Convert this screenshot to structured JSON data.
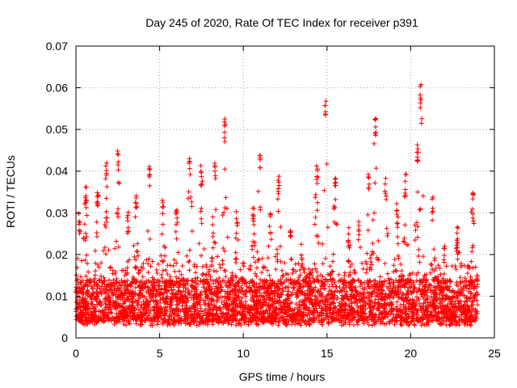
{
  "chart_data": {
    "type": "scatter",
    "title": "Day 245 of 2020, Rate Of TEC Index for receiver p391",
    "xlabel": "GPS time / hours",
    "ylabel": "ROTI / TECUs",
    "xlim": [
      0,
      25
    ],
    "ylim": [
      0,
      0.07
    ],
    "x_ticks": [
      "0",
      "5",
      "10",
      "15",
      "20",
      "25"
    ],
    "x_tick_values": [
      0,
      5,
      10,
      15,
      20,
      25
    ],
    "y_ticks": [
      "0",
      "0.01",
      "0.02",
      "0.03",
      "0.04",
      "0.05",
      "0.06",
      "0.07"
    ],
    "y_tick_values": [
      0,
      0.01,
      0.02,
      0.03,
      0.04,
      0.05,
      0.06,
      0.07
    ],
    "grid": true,
    "marker": "+",
    "color": "#ff0000",
    "x_range_data": [
      0,
      24
    ],
    "baseline": 0.007,
    "peaks": [
      {
        "x": 0.2,
        "y": 0.03
      },
      {
        "x": 0.6,
        "y": 0.037
      },
      {
        "x": 1.3,
        "y": 0.036
      },
      {
        "x": 1.8,
        "y": 0.044
      },
      {
        "x": 2.5,
        "y": 0.045
      },
      {
        "x": 3.1,
        "y": 0.031
      },
      {
        "x": 3.6,
        "y": 0.036
      },
      {
        "x": 4.4,
        "y": 0.042
      },
      {
        "x": 5.2,
        "y": 0.033
      },
      {
        "x": 6.0,
        "y": 0.031
      },
      {
        "x": 6.8,
        "y": 0.043
      },
      {
        "x": 7.5,
        "y": 0.042
      },
      {
        "x": 8.3,
        "y": 0.043
      },
      {
        "x": 8.9,
        "y": 0.053
      },
      {
        "x": 9.6,
        "y": 0.031
      },
      {
        "x": 10.6,
        "y": 0.032
      },
      {
        "x": 11.0,
        "y": 0.045
      },
      {
        "x": 11.6,
        "y": 0.03
      },
      {
        "x": 12.1,
        "y": 0.039
      },
      {
        "x": 12.8,
        "y": 0.026
      },
      {
        "x": 13.5,
        "y": 0.023
      },
      {
        "x": 14.4,
        "y": 0.042
      },
      {
        "x": 14.9,
        "y": 0.057
      },
      {
        "x": 15.5,
        "y": 0.039
      },
      {
        "x": 16.3,
        "y": 0.027
      },
      {
        "x": 16.9,
        "y": 0.028
      },
      {
        "x": 17.5,
        "y": 0.04
      },
      {
        "x": 17.9,
        "y": 0.054
      },
      {
        "x": 18.5,
        "y": 0.039
      },
      {
        "x": 19.2,
        "y": 0.033
      },
      {
        "x": 19.7,
        "y": 0.04
      },
      {
        "x": 20.4,
        "y": 0.048
      },
      {
        "x": 20.6,
        "y": 0.061
      },
      {
        "x": 21.3,
        "y": 0.034
      },
      {
        "x": 22.0,
        "y": 0.022
      },
      {
        "x": 22.8,
        "y": 0.027
      },
      {
        "x": 23.7,
        "y": 0.035
      }
    ]
  }
}
